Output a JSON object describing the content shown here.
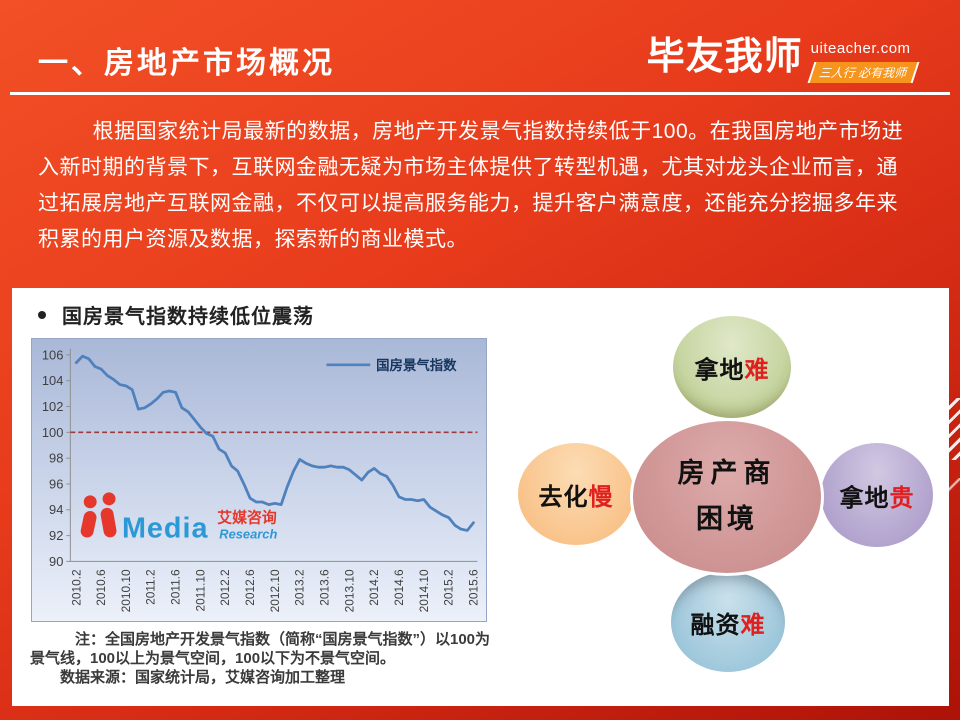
{
  "header": {
    "title": "一、房地产市场概况",
    "brand": {
      "name": "毕友我师",
      "domain": "uiteacher.com",
      "slogan": "三人行 必有我师",
      "badge_color": "#f7941e"
    }
  },
  "intro": {
    "text": "根据国家统计局最新的数据，房地产开发景气指数持续低于100。在我国房地产市场进入新时期的背景下，互联网金融无疑为市场主体提供了转型机遇，尤其对龙头企业而言，通过拓展房地产互联网金融，不仅可以提高服务能力，提升客户满意度，还能充分挖掘多年来积累的用户资源及数据，探索新的商业模式。"
  },
  "panel": {
    "bullet_title": "国房景气指数持续低位震荡",
    "note": "注：全国房地产开发景气指数（简称“国房景气指数”）以100为景气线，100以上为景气空间，100以下为不景气空间。",
    "source": "数据来源：国家统计局，艾媒咨询加工整理",
    "logo": {
      "media": "Media",
      "cn": "艾媒咨询",
      "research": "Research",
      "red": "#e5372b",
      "blue": "#2b99d6"
    }
  },
  "chart_data": {
    "type": "line",
    "title": "",
    "legend": [
      "国房景气指数"
    ],
    "ylabel": "",
    "xlabel": "",
    "ylim": [
      90,
      106
    ],
    "ytick_step": 2,
    "reference_line": 100,
    "line_color": "#4f81bd",
    "reference_color": "#9e3b39",
    "legend_text_color": "#17375e",
    "x": [
      "2010.2",
      "2010.3",
      "2010.4",
      "2010.5",
      "2010.6",
      "2010.7",
      "2010.8",
      "2010.9",
      "2010.10",
      "2010.11",
      "2010.12",
      "2011.1",
      "2011.2",
      "2011.3",
      "2011.4",
      "2011.5",
      "2011.6",
      "2011.7",
      "2011.8",
      "2011.9",
      "2011.10",
      "2011.11",
      "2011.12",
      "2012.1",
      "2012.2",
      "2012.3",
      "2012.4",
      "2012.5",
      "2012.6",
      "2012.7",
      "2012.8",
      "2012.9",
      "2012.10",
      "2012.11",
      "2012.12",
      "2013.1",
      "2013.2",
      "2013.3",
      "2013.4",
      "2013.5",
      "2013.6",
      "2013.7",
      "2013.8",
      "2013.9",
      "2013.10",
      "2013.11",
      "2013.12",
      "2014.1",
      "2014.2",
      "2014.3",
      "2014.4",
      "2014.5",
      "2014.6",
      "2014.7",
      "2014.8",
      "2014.9",
      "2014.10",
      "2014.11",
      "2014.12",
      "2015.1",
      "2015.2",
      "2015.3",
      "2015.4",
      "2015.5",
      "2015.6"
    ],
    "series": [
      {
        "name": "国房景气指数",
        "values": [
          105.4,
          105.9,
          105.7,
          105.1,
          104.9,
          104.4,
          104.1,
          103.7,
          103.6,
          103.3,
          101.8,
          101.9,
          102.2,
          102.6,
          103.1,
          103.2,
          103.1,
          101.9,
          101.6,
          101.0,
          100.4,
          99.9,
          99.7,
          98.7,
          98.4,
          97.4,
          97.0,
          96.0,
          94.9,
          94.6,
          94.6,
          94.4,
          94.5,
          94.4,
          95.8,
          97.0,
          97.9,
          97.6,
          97.4,
          97.3,
          97.3,
          97.4,
          97.3,
          97.3,
          97.1,
          96.7,
          96.3,
          96.9,
          97.2,
          96.8,
          96.6,
          95.9,
          95.0,
          94.8,
          94.8,
          94.7,
          94.8,
          94.2,
          93.9,
          93.6,
          93.4,
          92.8,
          92.5,
          92.4,
          93.0
        ]
      }
    ],
    "tick_labels": [
      "2010.2",
      "2010.6",
      "2010.10",
      "2011.2",
      "2011.6",
      "2011.10",
      "2012.2",
      "2012.6",
      "2012.10",
      "2013.2",
      "2013.6",
      "2013.10",
      "2014.2",
      "2014.6",
      "2014.10",
      "2015.2",
      "2015.6"
    ]
  },
  "diagram": {
    "center": {
      "line1": "房产商",
      "line2": "困境",
      "color": "#cf9494"
    },
    "nodes": [
      {
        "text": "拿地",
        "accent": "难",
        "color": "#c4d39d",
        "position": "top"
      },
      {
        "text": "去化",
        "accent": "慢",
        "color": "#f9c48c",
        "position": "left"
      },
      {
        "text": "拿地",
        "accent": "贵",
        "color": "#b2a4ce",
        "position": "right"
      },
      {
        "text": "融资",
        "accent": "难",
        "color": "#9fc8dc",
        "position": "bottom"
      }
    ],
    "accent_color": "#e01f1f"
  },
  "colors": {
    "slide_bg_top": "#f25026",
    "slide_bg_bottom": "#ad1208",
    "header_text": "#ffffff",
    "panel_bg": "#ffffff",
    "chart_bg_top": "#a9b8d8",
    "chart_bg_bottom": "#ecf0f9"
  }
}
